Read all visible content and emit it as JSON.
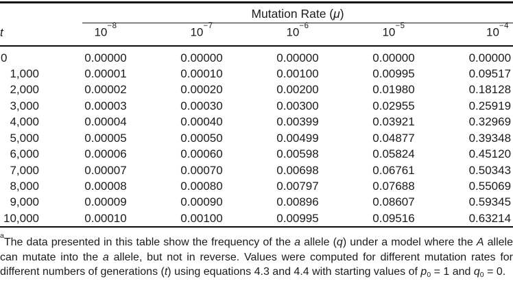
{
  "table": {
    "spanner_label_prefix": "Mutation Rate (",
    "spanner_mu": "μ",
    "spanner_label_suffix": ")",
    "t_header": "t",
    "rate_base": "10",
    "rate_exponents": [
      "−8",
      "−7",
      "−6",
      "−5",
      "−4"
    ],
    "rows": [
      {
        "t": "0",
        "values": [
          "0.00000",
          "0.00000",
          "0.00000",
          "0.00000",
          "0.00000"
        ]
      },
      {
        "t": "1,000",
        "values": [
          "0.00001",
          "0.00010",
          "0.00100",
          "0.00995",
          "0.09517"
        ]
      },
      {
        "t": "2,000",
        "values": [
          "0.00002",
          "0.00020",
          "0.00200",
          "0.01980",
          "0.18128"
        ]
      },
      {
        "t": "3,000",
        "values": [
          "0.00003",
          "0.00030",
          "0.00300",
          "0.02955",
          "0.25919"
        ]
      },
      {
        "t": "4,000",
        "values": [
          "0.00004",
          "0.00040",
          "0.00399",
          "0.03921",
          "0.32969"
        ]
      },
      {
        "t": "5,000",
        "values": [
          "0.00005",
          "0.00050",
          "0.00499",
          "0.04877",
          "0.39348"
        ]
      },
      {
        "t": "6,000",
        "values": [
          "0.00006",
          "0.00060",
          "0.00598",
          "0.05824",
          "0.45120"
        ]
      },
      {
        "t": "7,000",
        "values": [
          "0.00007",
          "0.00070",
          "0.00698",
          "0.06761",
          "0.50343"
        ]
      },
      {
        "t": "8,000",
        "values": [
          "0.00008",
          "0.00080",
          "0.00797",
          "0.07688",
          "0.55069"
        ]
      },
      {
        "t": "9,000",
        "values": [
          "0.00009",
          "0.00090",
          "0.00896",
          "0.08607",
          "0.59345"
        ]
      },
      {
        "t": "10,000",
        "values": [
          "0.00010",
          "0.00100",
          "0.00995",
          "0.09516",
          "0.63214"
        ]
      }
    ]
  },
  "footnote": {
    "marker": "a",
    "segments": [
      {
        "t": "The data presented in this table show the frequency of the ",
        "s": "n"
      },
      {
        "t": "a",
        "s": "i"
      },
      {
        "t": " allele (",
        "s": "n"
      },
      {
        "t": "q",
        "s": "i"
      },
      {
        "t": ") under a model where the ",
        "s": "n"
      },
      {
        "t": "A",
        "s": "i"
      },
      {
        "t": " allele can mutate into the ",
        "s": "n"
      },
      {
        "t": "a",
        "s": "i"
      },
      {
        "t": " allele, but not in reverse. Values were computed for different mutation rates for different numbers of generations (",
        "s": "n"
      },
      {
        "t": "t",
        "s": "i"
      },
      {
        "t": ") using equations 4.3 and 4.4 with starting values of ",
        "s": "n"
      },
      {
        "t": "p",
        "s": "i"
      },
      {
        "t": "0",
        "s": "sub"
      },
      {
        "t": " = 1 and ",
        "s": "n"
      },
      {
        "t": "q",
        "s": "i"
      },
      {
        "t": "0",
        "s": "sub"
      },
      {
        "t": " = 0.",
        "s": "n"
      }
    ]
  }
}
